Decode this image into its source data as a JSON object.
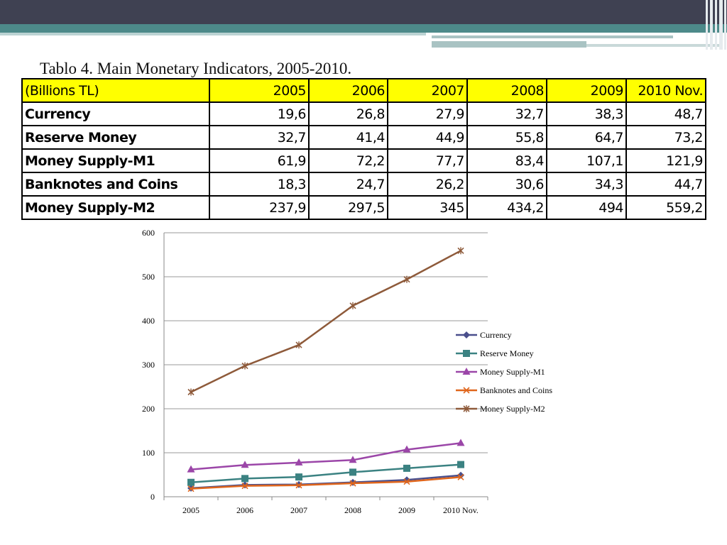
{
  "table": {
    "title": "Tablo 4. Main Monetary Indicators, 2005-2010.",
    "header_label": "(Billions TL)",
    "columns": [
      "2005",
      "2006",
      "2007",
      "2008",
      "2009",
      "2010 Nov."
    ],
    "rows": [
      {
        "label": "Currency",
        "values": [
          "19,6",
          "26,8",
          "27,9",
          "32,7",
          "38,3",
          "48,7"
        ]
      },
      {
        "label": "Reserve Money",
        "values": [
          "32,7",
          "41,4",
          "44,9",
          "55,8",
          "64,7",
          "73,2"
        ]
      },
      {
        "label": "Money Supply-M1",
        "values": [
          "61,9",
          "72,2",
          "77,7",
          "83,4",
          "107,1",
          "121,9"
        ]
      },
      {
        "label": "Banknotes and Coins",
        "values": [
          "18,3",
          "24,7",
          "26,2",
          "30,6",
          "34,3",
          "44,7"
        ]
      },
      {
        "label": "Money Supply-M2",
        "values": [
          "237,9",
          "297,5",
          "345",
          "434,2",
          "494",
          "559,2"
        ]
      }
    ]
  },
  "chart_data": {
    "type": "line",
    "categories": [
      "2005",
      "2006",
      "2007",
      "2008",
      "2009",
      "2010 Nov."
    ],
    "ylim": [
      0,
      600
    ],
    "yticks": [
      0,
      100,
      200,
      300,
      400,
      500,
      600
    ],
    "grid": true,
    "legend": "right",
    "series": [
      {
        "name": "Currency",
        "values": [
          19.6,
          26.8,
          27.9,
          32.7,
          38.3,
          48.7
        ],
        "color": "#4a4f8c",
        "marker": "diamond"
      },
      {
        "name": "Reserve Money",
        "values": [
          32.7,
          41.4,
          44.9,
          55.8,
          64.7,
          73.2
        ],
        "color": "#3b8282",
        "marker": "square"
      },
      {
        "name": "Money Supply-M1",
        "values": [
          61.9,
          72.2,
          77.7,
          83.4,
          107.1,
          121.9
        ],
        "color": "#9b46a8",
        "marker": "triangle"
      },
      {
        "name": "Banknotes and Coins",
        "values": [
          18.3,
          24.7,
          26.2,
          30.6,
          34.3,
          44.7
        ],
        "color": "#e0661c",
        "marker": "x"
      },
      {
        "name": "Money Supply-M2",
        "values": [
          237.9,
          297.5,
          345,
          434.2,
          494,
          559.2
        ],
        "color": "#8e5a3a",
        "marker": "star"
      }
    ]
  }
}
